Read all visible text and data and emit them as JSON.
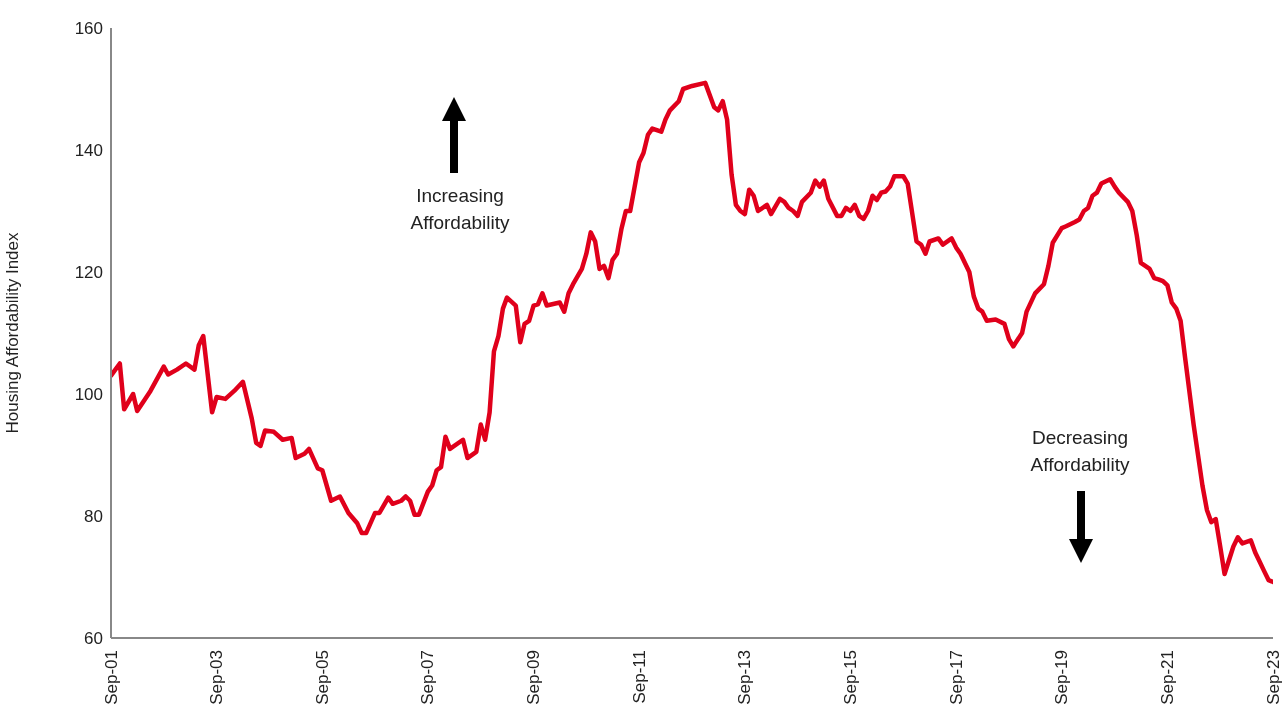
{
  "chart_data": {
    "type": "line",
    "ylabel": "Housing Affordability Index",
    "marker": "none",
    "line_style": "solid",
    "xlim": [
      "2001-09",
      "2023-09"
    ],
    "xticks": [
      {
        "value": "2001-09",
        "label": "Sep-01"
      },
      {
        "value": "2003-09",
        "label": "Sep-03"
      },
      {
        "value": "2005-09",
        "label": "Sep-05"
      },
      {
        "value": "2007-09",
        "label": "Sep-07"
      },
      {
        "value": "2009-09",
        "label": "Sep-09"
      },
      {
        "value": "2011-09",
        "label": "Sep-11"
      },
      {
        "value": "2013-09",
        "label": "Sep-13"
      },
      {
        "value": "2015-09",
        "label": "Sep-15"
      },
      {
        "value": "2017-09",
        "label": "Sep-17"
      },
      {
        "value": "2019-09",
        "label": "Sep-19"
      },
      {
        "value": "2021-09",
        "label": "Sep-21"
      },
      {
        "value": "2023-09",
        "label": "Sep-23"
      }
    ],
    "ylim": [
      60,
      160
    ],
    "yticks": [
      60,
      80,
      100,
      120,
      140,
      160
    ],
    "annotations": [
      "Increasing Affordability",
      "Decreasing Affordability"
    ],
    "x": [
      "2001-09",
      "2001-11",
      "2001-12",
      "2002-02",
      "2002-03",
      "2002-06",
      "2002-09",
      "2002-10",
      "2002-12",
      "2003-02",
      "2003-04",
      "2003-05",
      "2003-06",
      "2003-08",
      "2003-09",
      "2003-11",
      "2004-01",
      "2004-03",
      "2004-05",
      "2004-06",
      "2004-07",
      "2004-08",
      "2004-10",
      "2004-12",
      "2005-02",
      "2005-03",
      "2005-05",
      "2005-06",
      "2005-08",
      "2005-09",
      "2005-11",
      "2006-01",
      "2006-03",
      "2006-05",
      "2006-06",
      "2006-07",
      "2006-09",
      "2006-10",
      "2006-12",
      "2007-01",
      "2007-03",
      "2007-04",
      "2007-05",
      "2007-06",
      "2007-07",
      "2007-09",
      "2007-10",
      "2007-11",
      "2007-12",
      "2008-01",
      "2008-02",
      "2008-05",
      "2008-06",
      "2008-08",
      "2008-09",
      "2008-10",
      "2008-11",
      "2008-12",
      "2009-01",
      "2009-02",
      "2009-03",
      "2009-05",
      "2009-06",
      "2009-07",
      "2009-08",
      "2009-09",
      "2009-10",
      "2009-11",
      "2009-12",
      "2010-03",
      "2010-04",
      "2010-05",
      "2010-06",
      "2010-08",
      "2010-09",
      "2010-10",
      "2010-11",
      "2010-12",
      "2011-01",
      "2011-02",
      "2011-03",
      "2011-04",
      "2011-05",
      "2011-06",
      "2011-07",
      "2011-08",
      "2011-09",
      "2011-10",
      "2011-11",
      "2011-12",
      "2012-02",
      "2012-03",
      "2012-04",
      "2012-06",
      "2012-07",
      "2012-09",
      "2012-12",
      "2013-02",
      "2013-03",
      "2013-04",
      "2013-05",
      "2013-06",
      "2013-07",
      "2013-08",
      "2013-09",
      "2013-10",
      "2013-11",
      "2013-12",
      "2014-02",
      "2014-03",
      "2014-05",
      "2014-06",
      "2014-07",
      "2014-08",
      "2014-09",
      "2014-10",
      "2014-12",
      "2015-01",
      "2015-02",
      "2015-03",
      "2015-04",
      "2015-06",
      "2015-07",
      "2015-08",
      "2015-09",
      "2015-10",
      "2015-11",
      "2015-12",
      "2016-01",
      "2016-02",
      "2016-03",
      "2016-04",
      "2016-05",
      "2016-06",
      "2016-07",
      "2016-09",
      "2016-10",
      "2016-12",
      "2017-01",
      "2017-02",
      "2017-03",
      "2017-05",
      "2017-06",
      "2017-08",
      "2017-09",
      "2017-10",
      "2017-12",
      "2018-01",
      "2018-02",
      "2018-03",
      "2018-04",
      "2018-06",
      "2018-08",
      "2018-09",
      "2018-10",
      "2018-12",
      "2019-01",
      "2019-03",
      "2019-05",
      "2019-06",
      "2019-07",
      "2019-09",
      "2019-10",
      "2019-12",
      "2020-01",
      "2020-02",
      "2020-03",
      "2020-04",
      "2020-05",
      "2020-06",
      "2020-08",
      "2020-09",
      "2020-10",
      "2020-12",
      "2021-01",
      "2021-02",
      "2021-03",
      "2021-04",
      "2021-05",
      "2021-06",
      "2021-07",
      "2021-08",
      "2021-09",
      "2021-10",
      "2021-11",
      "2021-12",
      "2022-01",
      "2022-03",
      "2022-05",
      "2022-06",
      "2022-07",
      "2022-08",
      "2022-09",
      "2022-10",
      "2022-12",
      "2023-01",
      "2023-02",
      "2023-04",
      "2023-05",
      "2023-06",
      "2023-07",
      "2023-08",
      "2023-09"
    ],
    "series": [
      {
        "color": "#e0001b",
        "values": [
          103,
          105,
          97.5,
          100,
          97.2,
          100.5,
          104.5,
          103.2,
          104,
          105,
          104,
          108,
          109.5,
          97,
          99.5,
          99.2,
          100.5,
          102,
          96,
          92,
          91.5,
          94,
          93.8,
          92.5,
          92.8,
          89.5,
          90.2,
          91,
          87.8,
          87.5,
          82.5,
          83.2,
          80.5,
          78.8,
          77.2,
          77.2,
          80.5,
          80.5,
          83,
          82,
          82.5,
          83.2,
          82.5,
          80.2,
          80.2,
          84,
          85,
          87.5,
          88,
          93,
          91,
          92.5,
          89.5,
          90.5,
          95,
          92.5,
          97,
          107,
          109.5,
          114,
          115.8,
          114.5,
          108.5,
          111.5,
          112,
          114.5,
          114.7,
          116.5,
          114.5,
          115,
          113.5,
          116.5,
          118,
          120.5,
          123,
          126.5,
          125,
          120.5,
          121,
          119,
          122,
          123,
          127,
          130,
          130,
          134,
          138,
          139.5,
          142.5,
          143.5,
          143,
          145,
          146.5,
          148,
          150,
          150.5,
          151,
          147,
          146.5,
          148,
          145,
          136,
          131,
          130,
          129.5,
          133.5,
          132.5,
          130,
          131,
          129.5,
          132,
          131.5,
          130.5,
          130,
          129.2,
          131.5,
          133,
          135,
          134,
          135,
          132,
          129.2,
          129.2,
          130.5,
          130,
          131,
          129.2,
          128.7,
          130,
          132.5,
          131.8,
          133,
          133.2,
          134,
          135.7,
          135.7,
          134.5,
          125,
          124.5,
          123,
          125,
          125.5,
          124.5,
          125.5,
          124,
          123,
          120,
          116,
          114,
          113.5,
          112,
          112.2,
          111.5,
          109,
          107.8,
          110,
          113.5,
          116.5,
          118,
          121,
          124.8,
          127.2,
          127.5,
          128.2,
          128.6,
          130,
          130.5,
          132.5,
          133,
          134.5,
          135.2,
          134,
          133,
          131.5,
          130,
          126,
          121.5,
          121,
          120.5,
          119,
          118.8,
          118.5,
          117.8,
          115,
          114,
          112,
          106,
          95,
          85,
          81,
          79,
          79.5,
          75,
          70.5,
          75,
          76.5,
          75.5,
          76,
          74,
          72.5,
          71,
          69.5,
          69.2
        ]
      }
    ]
  }
}
